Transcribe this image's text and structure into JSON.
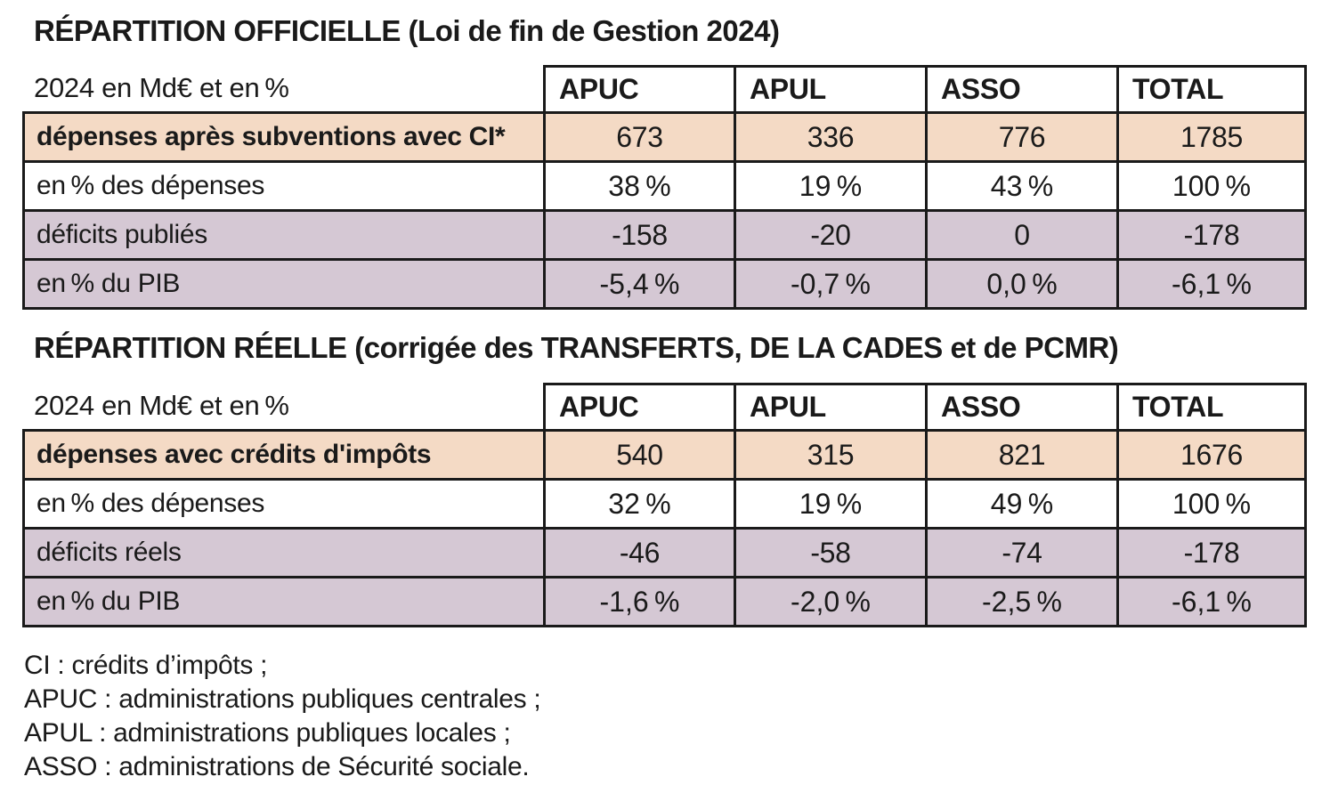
{
  "colors": {
    "peach_row": "#f4dac5",
    "lavender_row": "#d5c8d4",
    "border": "#1a1a1a",
    "background": "#ffffff"
  },
  "tables": [
    {
      "title": "RÉPARTITION OFFICIELLE (Loi de fin de Gestion 2024)",
      "corner_label": "2024 en Md€ et en %",
      "columns": [
        "APUC",
        "APUL",
        "ASSO",
        "TOTAL"
      ],
      "rows": [
        {
          "label": "dépenses après subventions avec CI*",
          "values": [
            "673",
            "336",
            "776",
            "1785"
          ]
        },
        {
          "label": "en % des dépenses",
          "values": [
            "38 %",
            "19 %",
            "43 %",
            "100 %"
          ]
        },
        {
          "label": "déficits publiés",
          "values": [
            "-158",
            "-20",
            "0",
            "-178"
          ]
        },
        {
          "label": "en % du PIB",
          "values": [
            "-5,4 %",
            "-0,7 %",
            "0,0 %",
            "-6,1 %"
          ]
        }
      ]
    },
    {
      "title": "RÉPARTITION RÉELLE (corrigée des TRANSFERTS, DE LA CADES et de PCMR)",
      "corner_label": "2024 en Md€ et en %",
      "columns": [
        "APUC",
        "APUL",
        "ASSO",
        "TOTAL"
      ],
      "rows": [
        {
          "label": "dépenses avec crédits d'impôts",
          "values": [
            "540",
            "315",
            "821",
            "1676"
          ]
        },
        {
          "label": "en % des dépenses",
          "values": [
            "32 %",
            "19 %",
            "49 %",
            "100 %"
          ]
        },
        {
          "label": "déficits réels",
          "values": [
            "-46",
            "-58",
            "-74",
            "-178"
          ]
        },
        {
          "label": "en % du PIB",
          "values": [
            "-1,6 %",
            "-2,0 %",
            "-2,5 %",
            "-6,1 %"
          ]
        }
      ]
    }
  ],
  "footnotes": [
    "CI : crédits d’impôts ;",
    "APUC : administrations publiques centrales ;",
    "APUL : administrations publiques locales ;",
    "ASSO : administrations de Sécurité sociale."
  ]
}
